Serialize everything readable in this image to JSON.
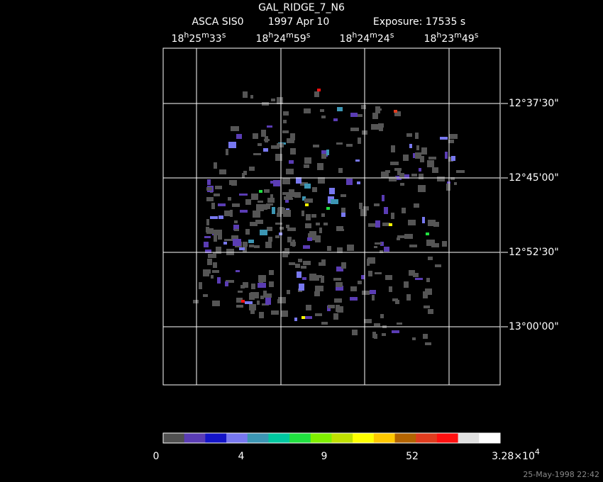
{
  "title": "GAL_RIDGE_7_N6",
  "subtitle": {
    "instrument": "ASCA SIS0",
    "date": "1997 Apr 10",
    "exposure": "Exposure: 17535 s"
  },
  "ra_labels": [
    [
      "18",
      "h",
      "25",
      "m",
      "33",
      "s"
    ],
    [
      "18",
      "h",
      "24",
      "m",
      "59",
      "s"
    ],
    [
      "18",
      "h",
      "24",
      "m",
      "24",
      "s"
    ],
    [
      "18",
      "h",
      "23",
      "m",
      "49",
      "s"
    ]
  ],
  "dec_labels": [
    "12°37'30\"",
    "12°45'00\"",
    "12°52'30\"",
    "13°00'00\""
  ],
  "colorbar": {
    "colors": [
      "#505050",
      "#5a3cb4",
      "#1414c8",
      "#7878f0",
      "#3c96b4",
      "#00c8a0",
      "#20e040",
      "#80f000",
      "#c0e000",
      "#ffff00",
      "#ffc800",
      "#b46400",
      "#e03c1e",
      "#ff1010",
      "#e0e0e0",
      "#ffffff"
    ],
    "labels": [
      "0",
      "4",
      "9",
      "52",
      [
        "3.28×10",
        "4"
      ]
    ]
  },
  "footer": "25-May-1998 22:42"
}
